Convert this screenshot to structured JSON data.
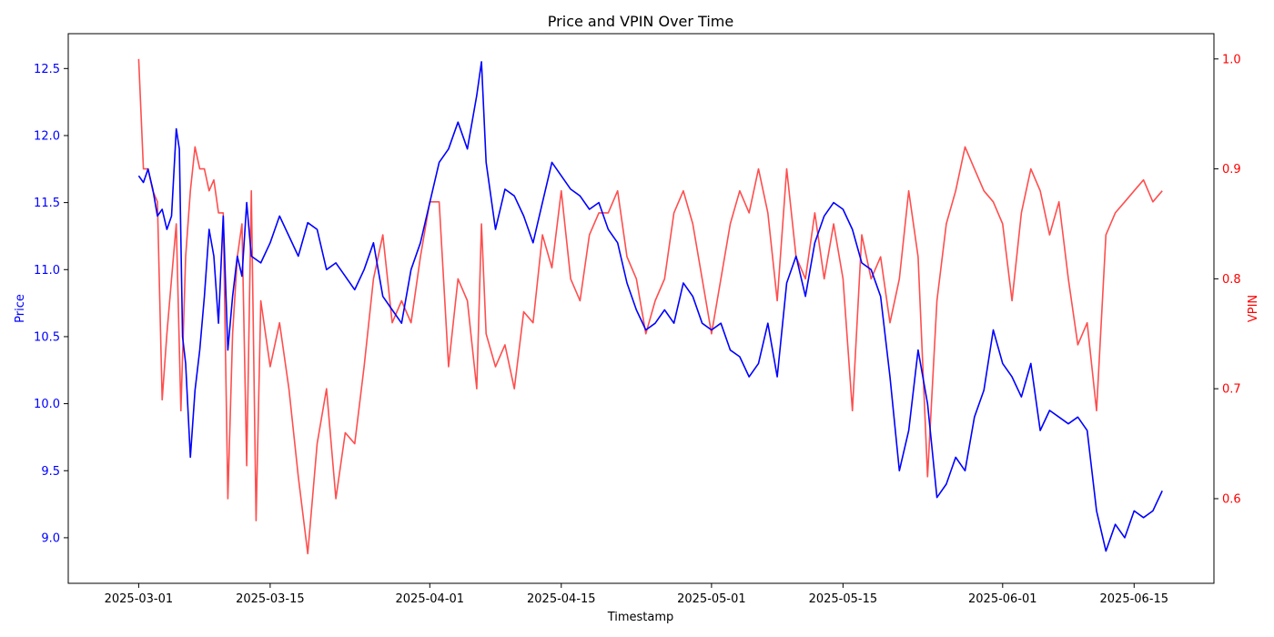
{
  "chart_data": {
    "type": "line",
    "title": "Price and VPIN Over Time",
    "xlabel": "Timestamp",
    "x_axis": {
      "type": "date",
      "range": [
        "2025-02-21T12:00",
        "2025-06-23T12:00"
      ],
      "ticks": [
        "2025-03-01",
        "2025-03-15",
        "2025-04-01",
        "2025-04-15",
        "2025-05-01",
        "2025-05-15",
        "2025-06-01",
        "2025-06-15"
      ]
    },
    "y_left": {
      "label": "Price",
      "color": "#0000ff",
      "range": [
        8.66,
        12.76
      ],
      "ticks": [
        "9.0",
        "9.5",
        "10.0",
        "10.5",
        "11.0",
        "11.5",
        "12.0",
        "12.5"
      ]
    },
    "y_right": {
      "label": "VPIN",
      "color": "#ff0000",
      "range": [
        0.523,
        1.023
      ],
      "ticks": [
        "0.6",
        "0.7",
        "0.8",
        "0.9",
        "1.0"
      ]
    },
    "grid": false,
    "series": [
      {
        "axis": "left",
        "color": "#0000ff",
        "x": [
          "2025-03-01",
          "2025-03-01",
          "2025-03-02",
          "2025-03-02",
          "2025-03-03",
          "2025-03-03",
          "2025-03-04",
          "2025-03-04",
          "2025-03-05",
          "2025-03-05",
          "2025-03-05",
          "2025-03-06",
          "2025-03-06",
          "2025-03-07",
          "2025-03-07",
          "2025-03-08",
          "2025-03-08",
          "2025-03-09",
          "2025-03-09",
          "2025-03-10",
          "2025-03-10",
          "2025-03-11",
          "2025-03-11",
          "2025-03-12",
          "2025-03-12",
          "2025-03-13",
          "2025-03-14",
          "2025-03-15",
          "2025-03-16",
          "2025-03-17",
          "2025-03-18",
          "2025-03-19",
          "2025-03-20",
          "2025-03-21",
          "2025-03-22",
          "2025-03-23",
          "2025-03-24",
          "2025-03-25",
          "2025-03-26",
          "2025-03-27",
          "2025-03-28",
          "2025-03-29",
          "2025-03-30",
          "2025-03-31",
          "2025-04-01",
          "2025-04-02",
          "2025-04-03",
          "2025-04-04",
          "2025-04-05",
          "2025-04-06",
          "2025-04-06",
          "2025-04-07",
          "2025-04-08",
          "2025-04-09",
          "2025-04-10",
          "2025-04-11",
          "2025-04-12",
          "2025-04-13",
          "2025-04-14",
          "2025-04-15",
          "2025-04-16",
          "2025-04-17",
          "2025-04-18",
          "2025-04-19",
          "2025-04-20",
          "2025-04-21",
          "2025-04-22",
          "2025-04-23",
          "2025-04-24",
          "2025-04-25",
          "2025-04-26",
          "2025-04-27",
          "2025-04-28",
          "2025-04-29",
          "2025-04-30",
          "2025-05-01",
          "2025-05-02",
          "2025-05-03",
          "2025-05-04",
          "2025-05-05",
          "2025-05-06",
          "2025-05-07",
          "2025-05-08",
          "2025-05-09",
          "2025-05-10",
          "2025-05-11",
          "2025-05-12",
          "2025-05-13",
          "2025-05-14",
          "2025-05-15",
          "2025-05-16",
          "2025-05-17",
          "2025-05-18",
          "2025-05-19",
          "2025-05-20",
          "2025-05-21",
          "2025-05-22",
          "2025-05-23",
          "2025-05-24",
          "2025-05-25",
          "2025-05-26",
          "2025-05-27",
          "2025-05-28",
          "2025-05-29",
          "2025-05-30",
          "2025-05-31",
          "2025-06-01",
          "2025-06-02",
          "2025-06-03",
          "2025-06-04",
          "2025-06-05",
          "2025-06-06",
          "2025-06-07",
          "2025-06-08",
          "2025-06-09",
          "2025-06-10",
          "2025-06-11",
          "2025-06-12",
          "2025-06-13",
          "2025-06-14",
          "2025-06-15",
          "2025-06-16",
          "2025-06-17",
          "2025-06-18"
        ],
        "y": [
          11.7,
          11.65,
          11.75,
          11.6,
          11.4,
          11.45,
          11.3,
          11.4,
          12.05,
          11.9,
          10.5,
          10.3,
          9.6,
          10.1,
          10.4,
          10.8,
          11.3,
          11.1,
          10.6,
          11.4,
          10.4,
          10.8,
          11.1,
          10.95,
          11.5,
          11.1,
          11.05,
          11.2,
          11.4,
          11.25,
          11.1,
          11.35,
          11.3,
          11.0,
          11.05,
          10.95,
          10.85,
          11.0,
          11.2,
          10.8,
          10.7,
          10.6,
          11.0,
          11.2,
          11.5,
          11.8,
          11.9,
          12.1,
          11.9,
          12.3,
          12.55,
          11.8,
          11.3,
          11.6,
          11.55,
          11.4,
          11.2,
          11.5,
          11.8,
          11.7,
          11.6,
          11.55,
          11.45,
          11.5,
          11.3,
          11.2,
          10.9,
          10.7,
          10.55,
          10.6,
          10.7,
          10.6,
          10.9,
          10.8,
          10.6,
          10.55,
          10.6,
          10.4,
          10.35,
          10.2,
          10.3,
          10.6,
          10.2,
          10.9,
          11.1,
          10.8,
          11.2,
          11.4,
          11.5,
          11.45,
          11.3,
          11.05,
          11.0,
          10.8,
          10.2,
          9.5,
          9.8,
          10.4,
          10.0,
          9.3,
          9.4,
          9.6,
          9.5,
          9.9,
          10.1,
          10.55,
          10.3,
          10.2,
          10.05,
          10.3,
          9.8,
          9.95,
          9.9,
          9.85,
          9.9,
          9.8,
          9.2,
          8.9,
          9.1,
          9.0,
          9.2,
          9.15,
          9.2,
          9.35
        ]
      },
      {
        "axis": "right",
        "color": "#ff4444",
        "x": [
          "2025-03-01",
          "2025-03-01",
          "2025-03-02",
          "2025-03-02",
          "2025-03-03",
          "2025-03-03",
          "2025-03-04",
          "2025-03-04",
          "2025-03-05",
          "2025-03-05",
          "2025-03-06",
          "2025-03-06",
          "2025-03-07",
          "2025-03-07",
          "2025-03-08",
          "2025-03-08",
          "2025-03-09",
          "2025-03-09",
          "2025-03-10",
          "2025-03-10",
          "2025-03-11",
          "2025-03-11",
          "2025-03-12",
          "2025-03-12",
          "2025-03-13",
          "2025-03-13",
          "2025-03-14",
          "2025-03-15",
          "2025-03-16",
          "2025-03-17",
          "2025-03-18",
          "2025-03-19",
          "2025-03-20",
          "2025-03-21",
          "2025-03-22",
          "2025-03-23",
          "2025-03-24",
          "2025-03-25",
          "2025-03-26",
          "2025-03-27",
          "2025-03-28",
          "2025-03-29",
          "2025-03-30",
          "2025-03-31",
          "2025-04-01",
          "2025-04-02",
          "2025-04-03",
          "2025-04-04",
          "2025-04-05",
          "2025-04-06",
          "2025-04-06",
          "2025-04-07",
          "2025-04-08",
          "2025-04-09",
          "2025-04-10",
          "2025-04-11",
          "2025-04-12",
          "2025-04-13",
          "2025-04-14",
          "2025-04-15",
          "2025-04-16",
          "2025-04-17",
          "2025-04-18",
          "2025-04-19",
          "2025-04-20",
          "2025-04-21",
          "2025-04-22",
          "2025-04-23",
          "2025-04-24",
          "2025-04-25",
          "2025-04-26",
          "2025-04-27",
          "2025-04-28",
          "2025-04-29",
          "2025-04-30",
          "2025-05-01",
          "2025-05-02",
          "2025-05-03",
          "2025-05-04",
          "2025-05-05",
          "2025-05-06",
          "2025-05-07",
          "2025-05-08",
          "2025-05-09",
          "2025-05-10",
          "2025-05-11",
          "2025-05-12",
          "2025-05-13",
          "2025-05-14",
          "2025-05-15",
          "2025-05-16",
          "2025-05-17",
          "2025-05-18",
          "2025-05-19",
          "2025-05-20",
          "2025-05-21",
          "2025-05-22",
          "2025-05-23",
          "2025-05-24",
          "2025-05-25",
          "2025-05-26",
          "2025-05-27",
          "2025-05-28",
          "2025-05-29",
          "2025-05-30",
          "2025-05-31",
          "2025-06-01",
          "2025-06-02",
          "2025-06-03",
          "2025-06-04",
          "2025-06-05",
          "2025-06-06",
          "2025-06-07",
          "2025-06-08",
          "2025-06-09",
          "2025-06-10",
          "2025-06-11",
          "2025-06-12",
          "2025-06-13",
          "2025-06-14",
          "2025-06-15",
          "2025-06-16",
          "2025-06-17",
          "2025-06-18"
        ],
        "y": [
          1.0,
          0.9,
          0.9,
          0.88,
          0.87,
          0.69,
          0.75,
          0.8,
          0.85,
          0.68,
          0.82,
          0.88,
          0.92,
          0.9,
          0.9,
          0.88,
          0.89,
          0.86,
          0.86,
          0.6,
          0.75,
          0.82,
          0.85,
          0.63,
          0.88,
          0.58,
          0.78,
          0.72,
          0.76,
          0.7,
          0.62,
          0.55,
          0.65,
          0.7,
          0.6,
          0.66,
          0.65,
          0.72,
          0.8,
          0.84,
          0.76,
          0.78,
          0.76,
          0.82,
          0.87,
          0.87,
          0.72,
          0.8,
          0.78,
          0.7,
          0.85,
          0.75,
          0.72,
          0.74,
          0.7,
          0.77,
          0.76,
          0.84,
          0.81,
          0.88,
          0.8,
          0.78,
          0.84,
          0.86,
          0.86,
          0.88,
          0.82,
          0.8,
          0.75,
          0.78,
          0.8,
          0.86,
          0.88,
          0.85,
          0.8,
          0.75,
          0.8,
          0.85,
          0.88,
          0.86,
          0.9,
          0.86,
          0.78,
          0.9,
          0.82,
          0.8,
          0.86,
          0.8,
          0.85,
          0.8,
          0.68,
          0.84,
          0.8,
          0.82,
          0.76,
          0.8,
          0.88,
          0.82,
          0.62,
          0.78,
          0.85,
          0.88,
          0.92,
          0.9,
          0.88,
          0.87,
          0.85,
          0.78,
          0.86,
          0.9,
          0.88,
          0.84,
          0.87,
          0.8,
          0.74,
          0.76,
          0.68,
          0.84,
          0.86,
          0.87,
          0.88,
          0.89,
          0.87,
          0.88
        ]
      }
    ]
  }
}
